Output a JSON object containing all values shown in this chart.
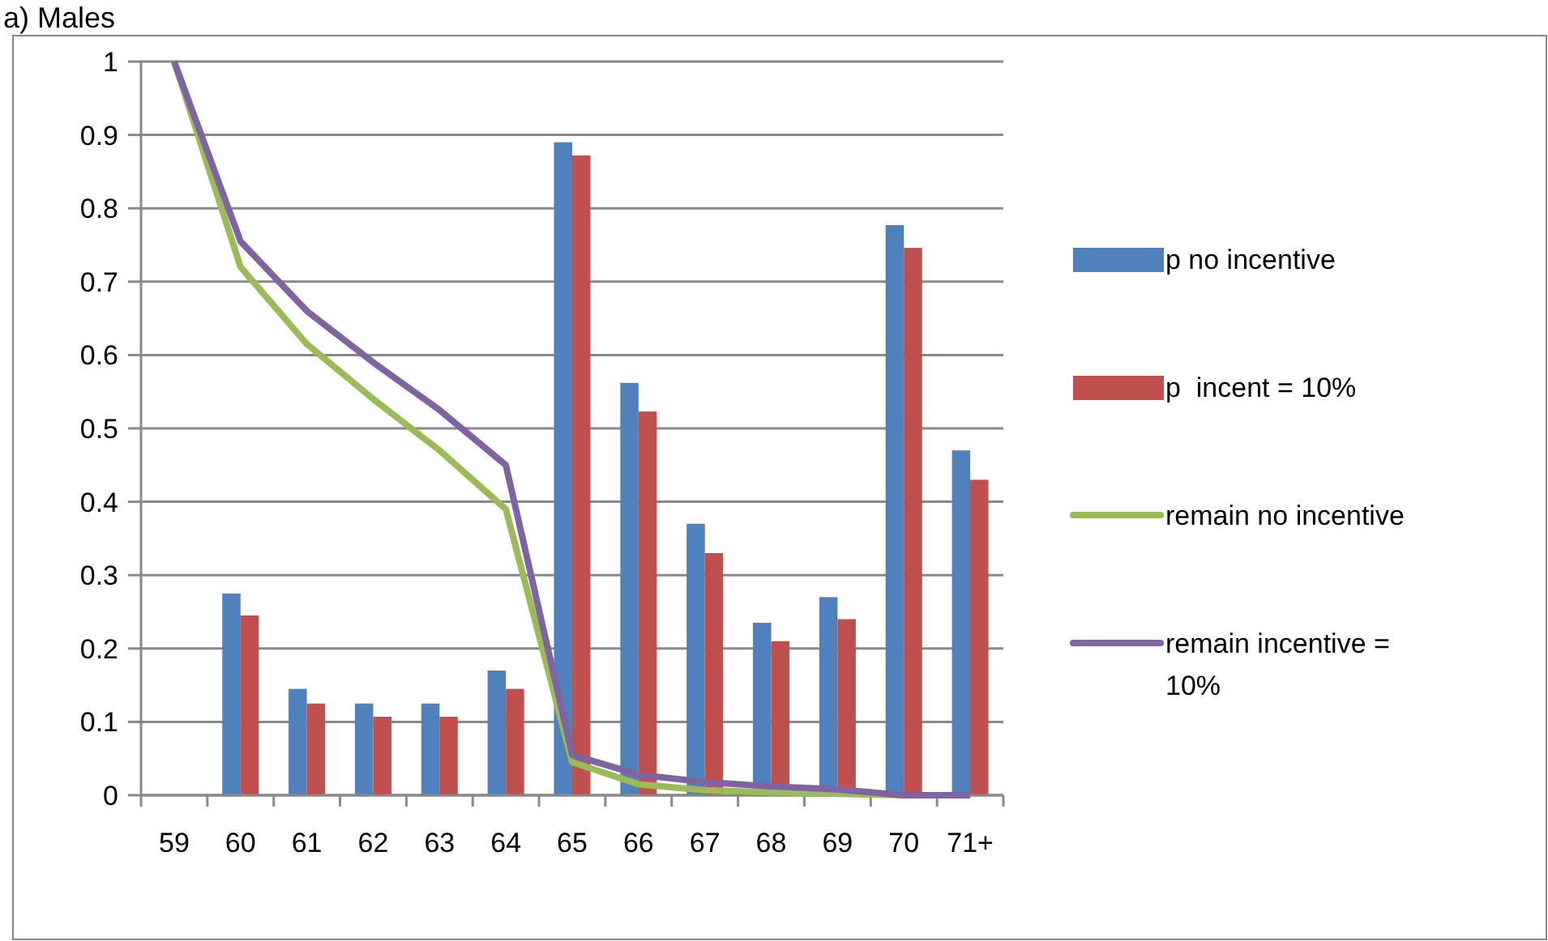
{
  "chart_data": {
    "type": "bar",
    "title": "a) Males",
    "categories": [
      "59",
      "60",
      "61",
      "62",
      "63",
      "64",
      "65",
      "66",
      "67",
      "68",
      "69",
      "70",
      "71+"
    ],
    "series": [
      {
        "name": "p no incentive",
        "color": "#4f81bd",
        "values": [
          null,
          0.275,
          0.145,
          0.125,
          0.125,
          0.17,
          0.89,
          0.562,
          0.37,
          0.235,
          0.27,
          0.777,
          0.47
        ]
      },
      {
        "name": "p  incent = 10%",
        "color": "#c0504d",
        "values": [
          null,
          0.245,
          0.125,
          0.107,
          0.107,
          0.145,
          0.872,
          0.523,
          0.33,
          0.21,
          0.24,
          0.746,
          0.43
        ]
      },
      {
        "name": "remain no incentive",
        "type": "line",
        "color": "#9bbb59",
        "values": [
          1,
          0.72,
          0.615,
          0.54,
          0.47,
          0.39,
          0.045,
          0.015,
          0.007,
          0.004,
          0.002,
          0,
          0
        ]
      },
      {
        "name": "remain incentive = 10%",
        "type": "line",
        "color": "#8064a2",
        "values": [
          1,
          0.755,
          0.66,
          0.59,
          0.525,
          0.45,
          0.055,
          0.028,
          0.018,
          0.012,
          0.008,
          0,
          0
        ]
      }
    ],
    "ylim": [
      0,
      1
    ],
    "yticks": [
      0,
      0.1,
      0.2,
      0.3,
      0.4,
      0.5,
      0.6,
      0.7,
      0.8,
      0.9,
      1
    ],
    "grid": "y",
    "legend": "right"
  }
}
